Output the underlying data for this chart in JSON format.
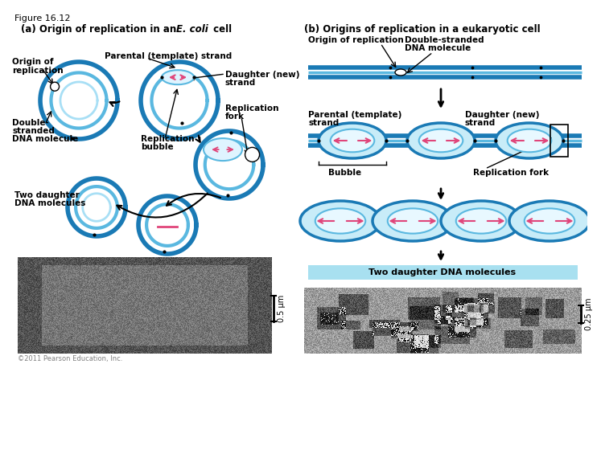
{
  "fig_title": "Figure 16.12",
  "panel_a_title_1": "(a) Origin of replication in an ",
  "panel_a_title_italic": "E. coli",
  "panel_a_title_2": " cell",
  "panel_b_title": "(b) Origins of replication in a eukaryotic cell",
  "colors": {
    "outer_circle": "#1a7ab5",
    "inner_circle": "#5ab8e0",
    "lightest_circle": "#a8dff5",
    "pink": "#e0457a",
    "background": "#ffffff",
    "text": "#000000",
    "dna_bg": "#b8e8f8",
    "bubble_label_bg": "#a8dff0"
  },
  "copyright": "©2011 Pearson Education, Inc.",
  "scale_bar_left": "0.5 μm",
  "scale_bar_right": "0.25 μm"
}
